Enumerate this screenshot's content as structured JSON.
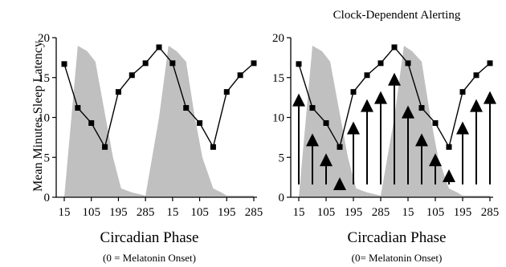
{
  "figure": {
    "ylabel": "Mean Minutes Sleep Latency"
  },
  "chart_data": [
    {
      "type": "line",
      "title": "",
      "xlabel": "Circadian Phase",
      "xlabel_note": "(0 = Melatonin Onset)",
      "ylabel": "Mean Minutes Sleep Latency",
      "ylim": [
        0,
        20
      ],
      "yticks": [
        "0",
        "5",
        "10",
        "15",
        "20"
      ],
      "xticks": [
        "15",
        "105",
        "195",
        "285",
        "15",
        "105",
        "195",
        "285"
      ],
      "grid": false,
      "series": [
        {
          "kind": "line-with-square-markers",
          "values": [
            16.7,
            11.2,
            9.3,
            6.3,
            13.2,
            15.3,
            16.8,
            18.8,
            16.8,
            11.2,
            9.3,
            6.3,
            13.2,
            15.3,
            16.8
          ]
        },
        {
          "kind": "shaded-area",
          "x": [
            0,
            1,
            1.7,
            2.3,
            3,
            3.6,
            4.2,
            5,
            6,
            7,
            7.7,
            8.3,
            9,
            9.6,
            10.2,
            11,
            11.6,
            12,
            12.5,
            13,
            13.5,
            14
          ],
          "values": [
            0,
            19.0,
            18.3,
            17.0,
            10.5,
            5.0,
            1.1,
            0.6,
            0.2,
            10.0,
            19.0,
            18.3,
            17.0,
            10.5,
            5.0,
            1.1,
            0.6,
            0.2,
            0.2,
            0.2,
            0.2,
            0.2
          ]
        }
      ]
    },
    {
      "type": "line",
      "title": "Clock-Dependent Alerting",
      "xlabel": "Circadian Phase",
      "xlabel_note": "(0= Melatonin Onset)",
      "ylim": [
        0,
        20
      ],
      "yticks": [
        "0",
        "5",
        "10",
        "15",
        "20"
      ],
      "xticks": [
        "15",
        "105",
        "195",
        "285",
        "15",
        "105",
        "195",
        "285"
      ],
      "grid": false,
      "series": [
        {
          "kind": "line-with-square-markers",
          "values": [
            16.7,
            11.2,
            9.3,
            6.3,
            13.2,
            15.3,
            16.8,
            18.8,
            16.8,
            11.2,
            9.3,
            6.3,
            13.2,
            15.3,
            16.8
          ]
        },
        {
          "kind": "shaded-area",
          "x": [
            0,
            1,
            1.7,
            2.3,
            3,
            3.6,
            4.2,
            5,
            6,
            7,
            7.7,
            8.3,
            9,
            9.6,
            10.2,
            11,
            11.6,
            12,
            12.5,
            13,
            13.5,
            14
          ],
          "values": [
            0,
            19.0,
            18.3,
            17.0,
            10.5,
            5.0,
            1.1,
            0.6,
            0.2,
            10.0,
            19.0,
            18.3,
            17.0,
            10.5,
            5.0,
            1.1,
            0.6,
            0.2,
            0.2,
            0.2,
            0.2,
            0.2
          ]
        },
        {
          "kind": "upward-arrows",
          "x": [
            0,
            1,
            2,
            3,
            4,
            5,
            6,
            7,
            8,
            9,
            10,
            11,
            12,
            13,
            14
          ],
          "values": [
            13.0,
            8.0,
            5.5,
            2.5,
            9.5,
            12.3,
            13.3,
            15.6,
            11.5,
            8.0,
            5.5,
            3.5,
            9.5,
            12.3,
            13.3
          ]
        }
      ]
    }
  ]
}
